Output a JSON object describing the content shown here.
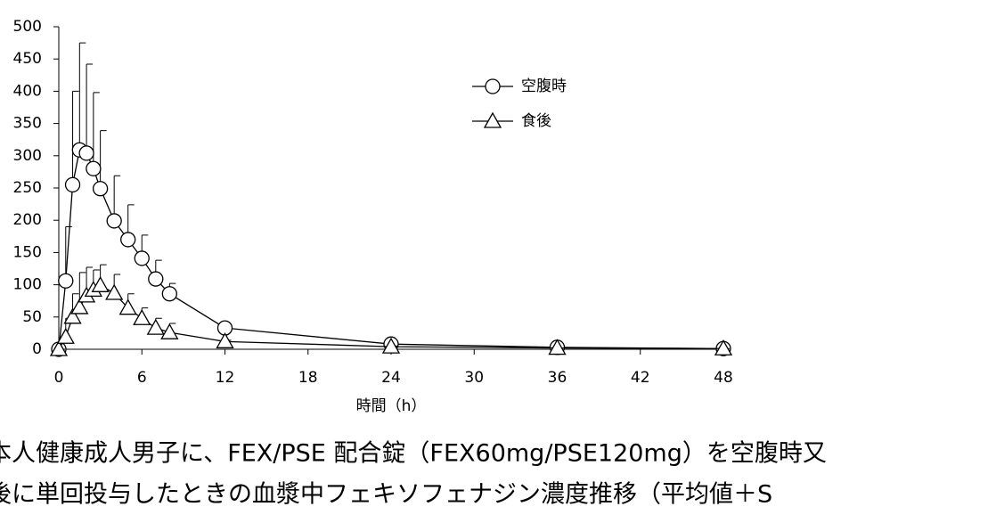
{
  "chart_data": {
    "type": "line",
    "x_label": "時間（h）",
    "x": [
      0,
      0.5,
      1,
      1.5,
      2,
      2.5,
      3,
      4,
      5,
      6,
      7,
      8,
      12,
      24,
      36,
      48
    ],
    "series": [
      {
        "name": "空腹時",
        "marker": "circle",
        "color": "#000000",
        "values": [
          0,
          106,
          255,
          309,
          304,
          280,
          249,
          199,
          170,
          141,
          109,
          86,
          33,
          8,
          3,
          1
        ],
        "errors": [
          0,
          84,
          145,
          166,
          138,
          118,
          90,
          70,
          54,
          36,
          29,
          16,
          4,
          2,
          1,
          0
        ]
      },
      {
        "name": "食後",
        "marker": "triangle",
        "color": "#000000",
        "values": [
          0,
          19,
          50,
          65,
          83,
          92,
          99,
          87,
          64,
          48,
          33,
          26,
          12,
          4,
          2,
          1
        ],
        "errors": [
          0,
          29,
          36,
          54,
          44,
          31,
          32,
          29,
          22,
          16,
          15,
          14,
          2,
          1,
          0,
          0
        ]
      }
    ],
    "xlim": [
      0,
      48
    ],
    "xticks": [
      0,
      6,
      12,
      18,
      24,
      30,
      36,
      42,
      48
    ],
    "ylim": [
      0,
      500
    ],
    "yticks": [
      0,
      50,
      100,
      150,
      200,
      250,
      300,
      350,
      400,
      450,
      500
    ],
    "caption": [
      "本人健康成人男子に、FEX/PSE 配合錠（FEX60mg/PSE120mg）を空腹時又",
      "後に単回投与したときの血漿中フェキソフェナジン濃度推移（平均値＋S"
    ]
  }
}
